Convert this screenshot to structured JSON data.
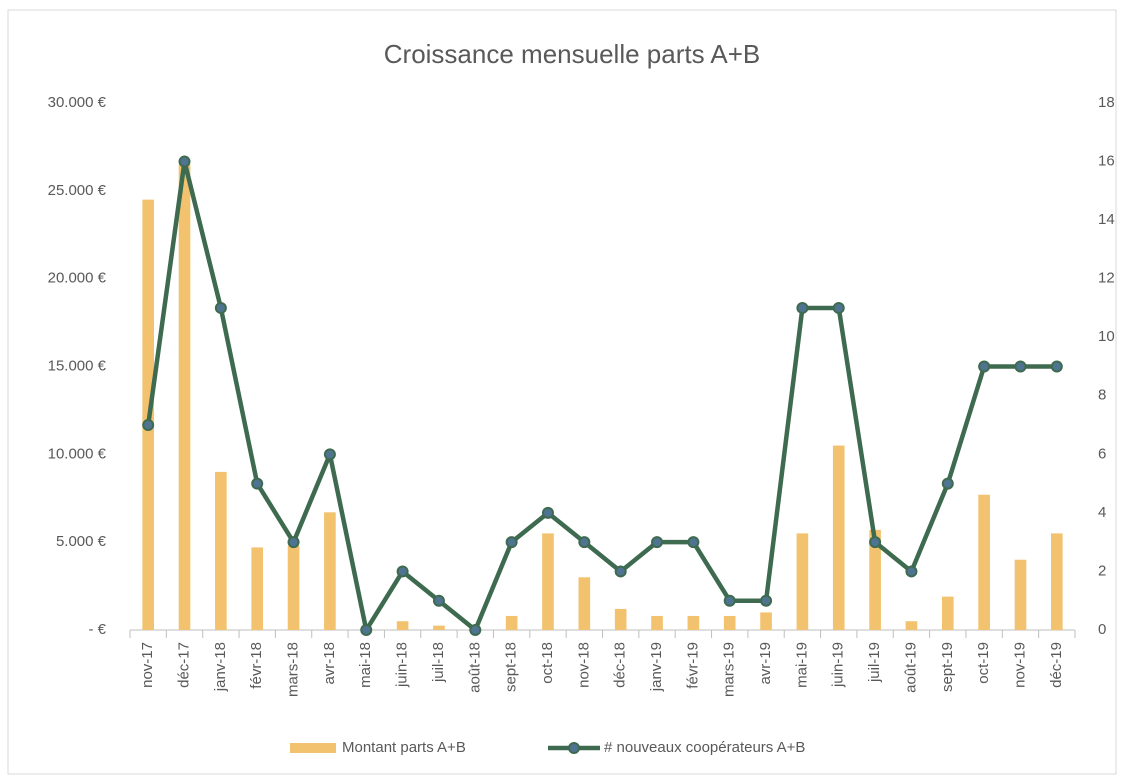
{
  "chart_data": {
    "type": "bar_line",
    "title": "Croissance mensuelle parts A+B",
    "categories": [
      "nov-17",
      "déc-17",
      "janv-18",
      "févr-18",
      "mars-18",
      "avr-18",
      "mai-18",
      "juin-18",
      "juil-18",
      "août-18",
      "sept-18",
      "oct-18",
      "nov-18",
      "déc-18",
      "janv-19",
      "févr-19",
      "mars-19",
      "avr-19",
      "mai-19",
      "juin-19",
      "juil-19",
      "août-19",
      "sept-19",
      "oct-19",
      "nov-19",
      "déc-19"
    ],
    "series": [
      {
        "name": "Montant parts A+B",
        "type": "bar",
        "color": "#f2c26e",
        "values": [
          24500,
          26500,
          9000,
          4700,
          4800,
          6700,
          0,
          500,
          250,
          0,
          800,
          5500,
          3000,
          1200,
          800,
          800,
          800,
          1000,
          5500,
          10500,
          5700,
          500,
          1900,
          7700,
          4000,
          5500
        ]
      },
      {
        "name": "# nouveaux coopérateurs A+B",
        "type": "line",
        "axis": "y2",
        "color": "#3e6b50",
        "marker_color": "#4f7491",
        "values": [
          7,
          16,
          11,
          5,
          3,
          6,
          0,
          2,
          1,
          0,
          3,
          4,
          3,
          2,
          3,
          3,
          1,
          1,
          11,
          11,
          3,
          2,
          5,
          9,
          9,
          9
        ]
      }
    ],
    "ylim": [
      0,
      30000
    ],
    "yticks": [
      {
        "value": 0,
        "label": "-  €"
      },
      {
        "value": 5000,
        "label": "5.000 €"
      },
      {
        "value": 10000,
        "label": "10.000 €"
      },
      {
        "value": 15000,
        "label": "15.000 €"
      },
      {
        "value": 20000,
        "label": "20.000 €"
      },
      {
        "value": 25000,
        "label": "25.000 €"
      },
      {
        "value": 30000,
        "label": "30.000 €"
      }
    ],
    "y2lim": [
      0,
      18
    ],
    "y2ticks": [
      0,
      2,
      4,
      6,
      8,
      10,
      12,
      14,
      16,
      18
    ],
    "legend": "bottom"
  }
}
